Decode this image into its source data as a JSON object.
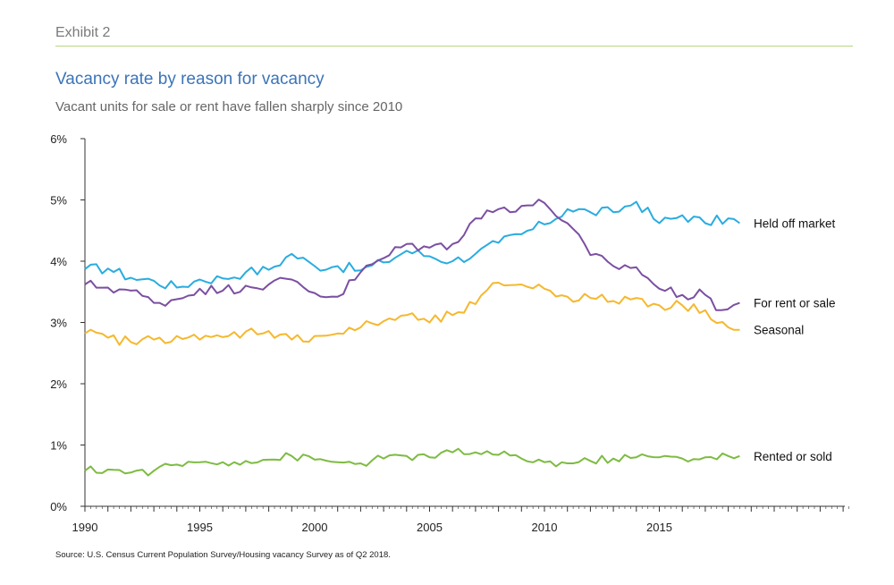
{
  "header": {
    "exhibit": "Exhibit 2",
    "title": "Vacancy rate by reason for vacancy",
    "subtitle": "Vacant units for sale or rent have fallen sharply since 2010"
  },
  "footer": {
    "source": "Source: U.S. Census Current Population Survey/Housing vacancy Survey as of Q2 2018."
  },
  "chart_data": {
    "type": "line",
    "x_label_ticks": [
      "1990",
      "1995",
      "2000",
      "2005",
      "2010",
      "2015"
    ],
    "y_tick_labels": [
      "0%",
      "1%",
      "2%",
      "3%",
      "4%",
      "5%",
      "6%"
    ],
    "ylim": [
      0,
      6
    ],
    "xlim": [
      1990,
      2023.25
    ],
    "legend": "series labels at right end of lines",
    "grid": false,
    "series": [
      {
        "name": "Held off market",
        "color": "#29ace0",
        "points": [
          [
            1990,
            3.87
          ],
          [
            1991,
            3.88
          ],
          [
            1992,
            3.73
          ],
          [
            1993,
            3.68
          ],
          [
            1994,
            3.57
          ],
          [
            1995,
            3.7
          ],
          [
            1996,
            3.72
          ],
          [
            1997,
            3.82
          ],
          [
            1998,
            3.86
          ],
          [
            1999,
            4.12
          ],
          [
            2000,
            3.92
          ],
          [
            2001,
            3.92
          ],
          [
            2002,
            3.85
          ],
          [
            2003,
            3.98
          ],
          [
            2004,
            4.17
          ],
          [
            2005,
            4.08
          ],
          [
            2006,
            4.0
          ],
          [
            2007,
            4.12
          ],
          [
            2008,
            4.3
          ],
          [
            2009,
            4.44
          ],
          [
            2010,
            4.6
          ],
          [
            2011,
            4.85
          ],
          [
            2012,
            4.8
          ],
          [
            2013,
            4.8
          ],
          [
            2014,
            4.97
          ],
          [
            2015,
            4.62
          ],
          [
            2016,
            4.75
          ],
          [
            2017,
            4.62
          ],
          [
            2018,
            4.7
          ],
          [
            2018.5,
            4.62
          ]
        ]
      },
      {
        "name": "For rent or sale",
        "color": "#7b4fa1",
        "points": [
          [
            1990,
            3.62
          ],
          [
            1991,
            3.57
          ],
          [
            1992,
            3.52
          ],
          [
            1993,
            3.32
          ],
          [
            1994,
            3.38
          ],
          [
            1995,
            3.55
          ],
          [
            1996,
            3.52
          ],
          [
            1997,
            3.6
          ],
          [
            1998,
            3.62
          ],
          [
            1999,
            3.7
          ],
          [
            2000,
            3.48
          ],
          [
            2001,
            3.42
          ],
          [
            2002,
            3.82
          ],
          [
            2003,
            4.05
          ],
          [
            2004,
            4.28
          ],
          [
            2005,
            4.22
          ],
          [
            2006,
            4.28
          ],
          [
            2007,
            4.7
          ],
          [
            2008,
            4.85
          ],
          [
            2009,
            4.9
          ],
          [
            2010,
            4.95
          ],
          [
            2011,
            4.62
          ],
          [
            2012,
            4.1
          ],
          [
            2013,
            3.92
          ],
          [
            2014,
            3.9
          ],
          [
            2015,
            3.55
          ],
          [
            2016,
            3.45
          ],
          [
            2017,
            3.45
          ],
          [
            2017.7,
            3.2
          ],
          [
            2018.5,
            3.32
          ]
        ]
      },
      {
        "name": "Seasonal",
        "color": "#f5b82e",
        "points": [
          [
            1990,
            2.82
          ],
          [
            1991,
            2.75
          ],
          [
            1992,
            2.68
          ],
          [
            1993,
            2.72
          ],
          [
            1994,
            2.78
          ],
          [
            1995,
            2.72
          ],
          [
            1996,
            2.76
          ],
          [
            1997,
            2.85
          ],
          [
            1998,
            2.86
          ],
          [
            1999,
            2.72
          ],
          [
            2000,
            2.78
          ],
          [
            2001,
            2.82
          ],
          [
            2002,
            2.92
          ],
          [
            2003,
            3.02
          ],
          [
            2004,
            3.12
          ],
          [
            2005,
            3.0
          ],
          [
            2006,
            3.12
          ],
          [
            2007,
            3.3
          ],
          [
            2008,
            3.65
          ],
          [
            2009,
            3.62
          ],
          [
            2010,
            3.55
          ],
          [
            2011,
            3.42
          ],
          [
            2012,
            3.4
          ],
          [
            2013,
            3.35
          ],
          [
            2014,
            3.4
          ],
          [
            2015,
            3.28
          ],
          [
            2016,
            3.28
          ],
          [
            2017,
            3.2
          ],
          [
            2018,
            2.92
          ],
          [
            2018.5,
            2.88
          ]
        ]
      },
      {
        "name": "Rented or sold",
        "color": "#7dbb42",
        "points": [
          [
            1990,
            0.58
          ],
          [
            1991,
            0.6
          ],
          [
            1992,
            0.55
          ],
          [
            1993,
            0.58
          ],
          [
            1994,
            0.68
          ],
          [
            1995,
            0.72
          ],
          [
            1996,
            0.72
          ],
          [
            1997,
            0.74
          ],
          [
            1998,
            0.76
          ],
          [
            1999,
            0.82
          ],
          [
            2000,
            0.76
          ],
          [
            2001,
            0.72
          ],
          [
            2002,
            0.7
          ],
          [
            2003,
            0.78
          ],
          [
            2004,
            0.82
          ],
          [
            2005,
            0.8
          ],
          [
            2006,
            0.88
          ],
          [
            2007,
            0.88
          ],
          [
            2008,
            0.84
          ],
          [
            2009,
            0.78
          ],
          [
            2010,
            0.72
          ],
          [
            2011,
            0.7
          ],
          [
            2012,
            0.74
          ],
          [
            2013,
            0.78
          ],
          [
            2014,
            0.8
          ],
          [
            2015,
            0.8
          ],
          [
            2016,
            0.78
          ],
          [
            2017,
            0.8
          ],
          [
            2018,
            0.82
          ],
          [
            2018.5,
            0.82
          ]
        ]
      }
    ]
  }
}
